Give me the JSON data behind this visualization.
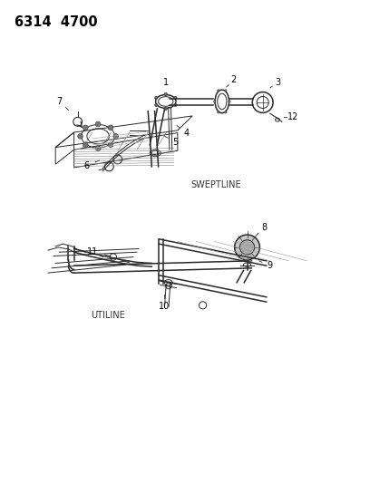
{
  "title_code": "6314  4700",
  "background_color": "#ffffff",
  "text_color": "#000000",
  "line_color": "#2a2a2a",
  "sweptline_label": "SWEPTLINE",
  "utiline_label": "UTILINE",
  "fig_width": 4.08,
  "fig_height": 5.33,
  "dpi": 100
}
